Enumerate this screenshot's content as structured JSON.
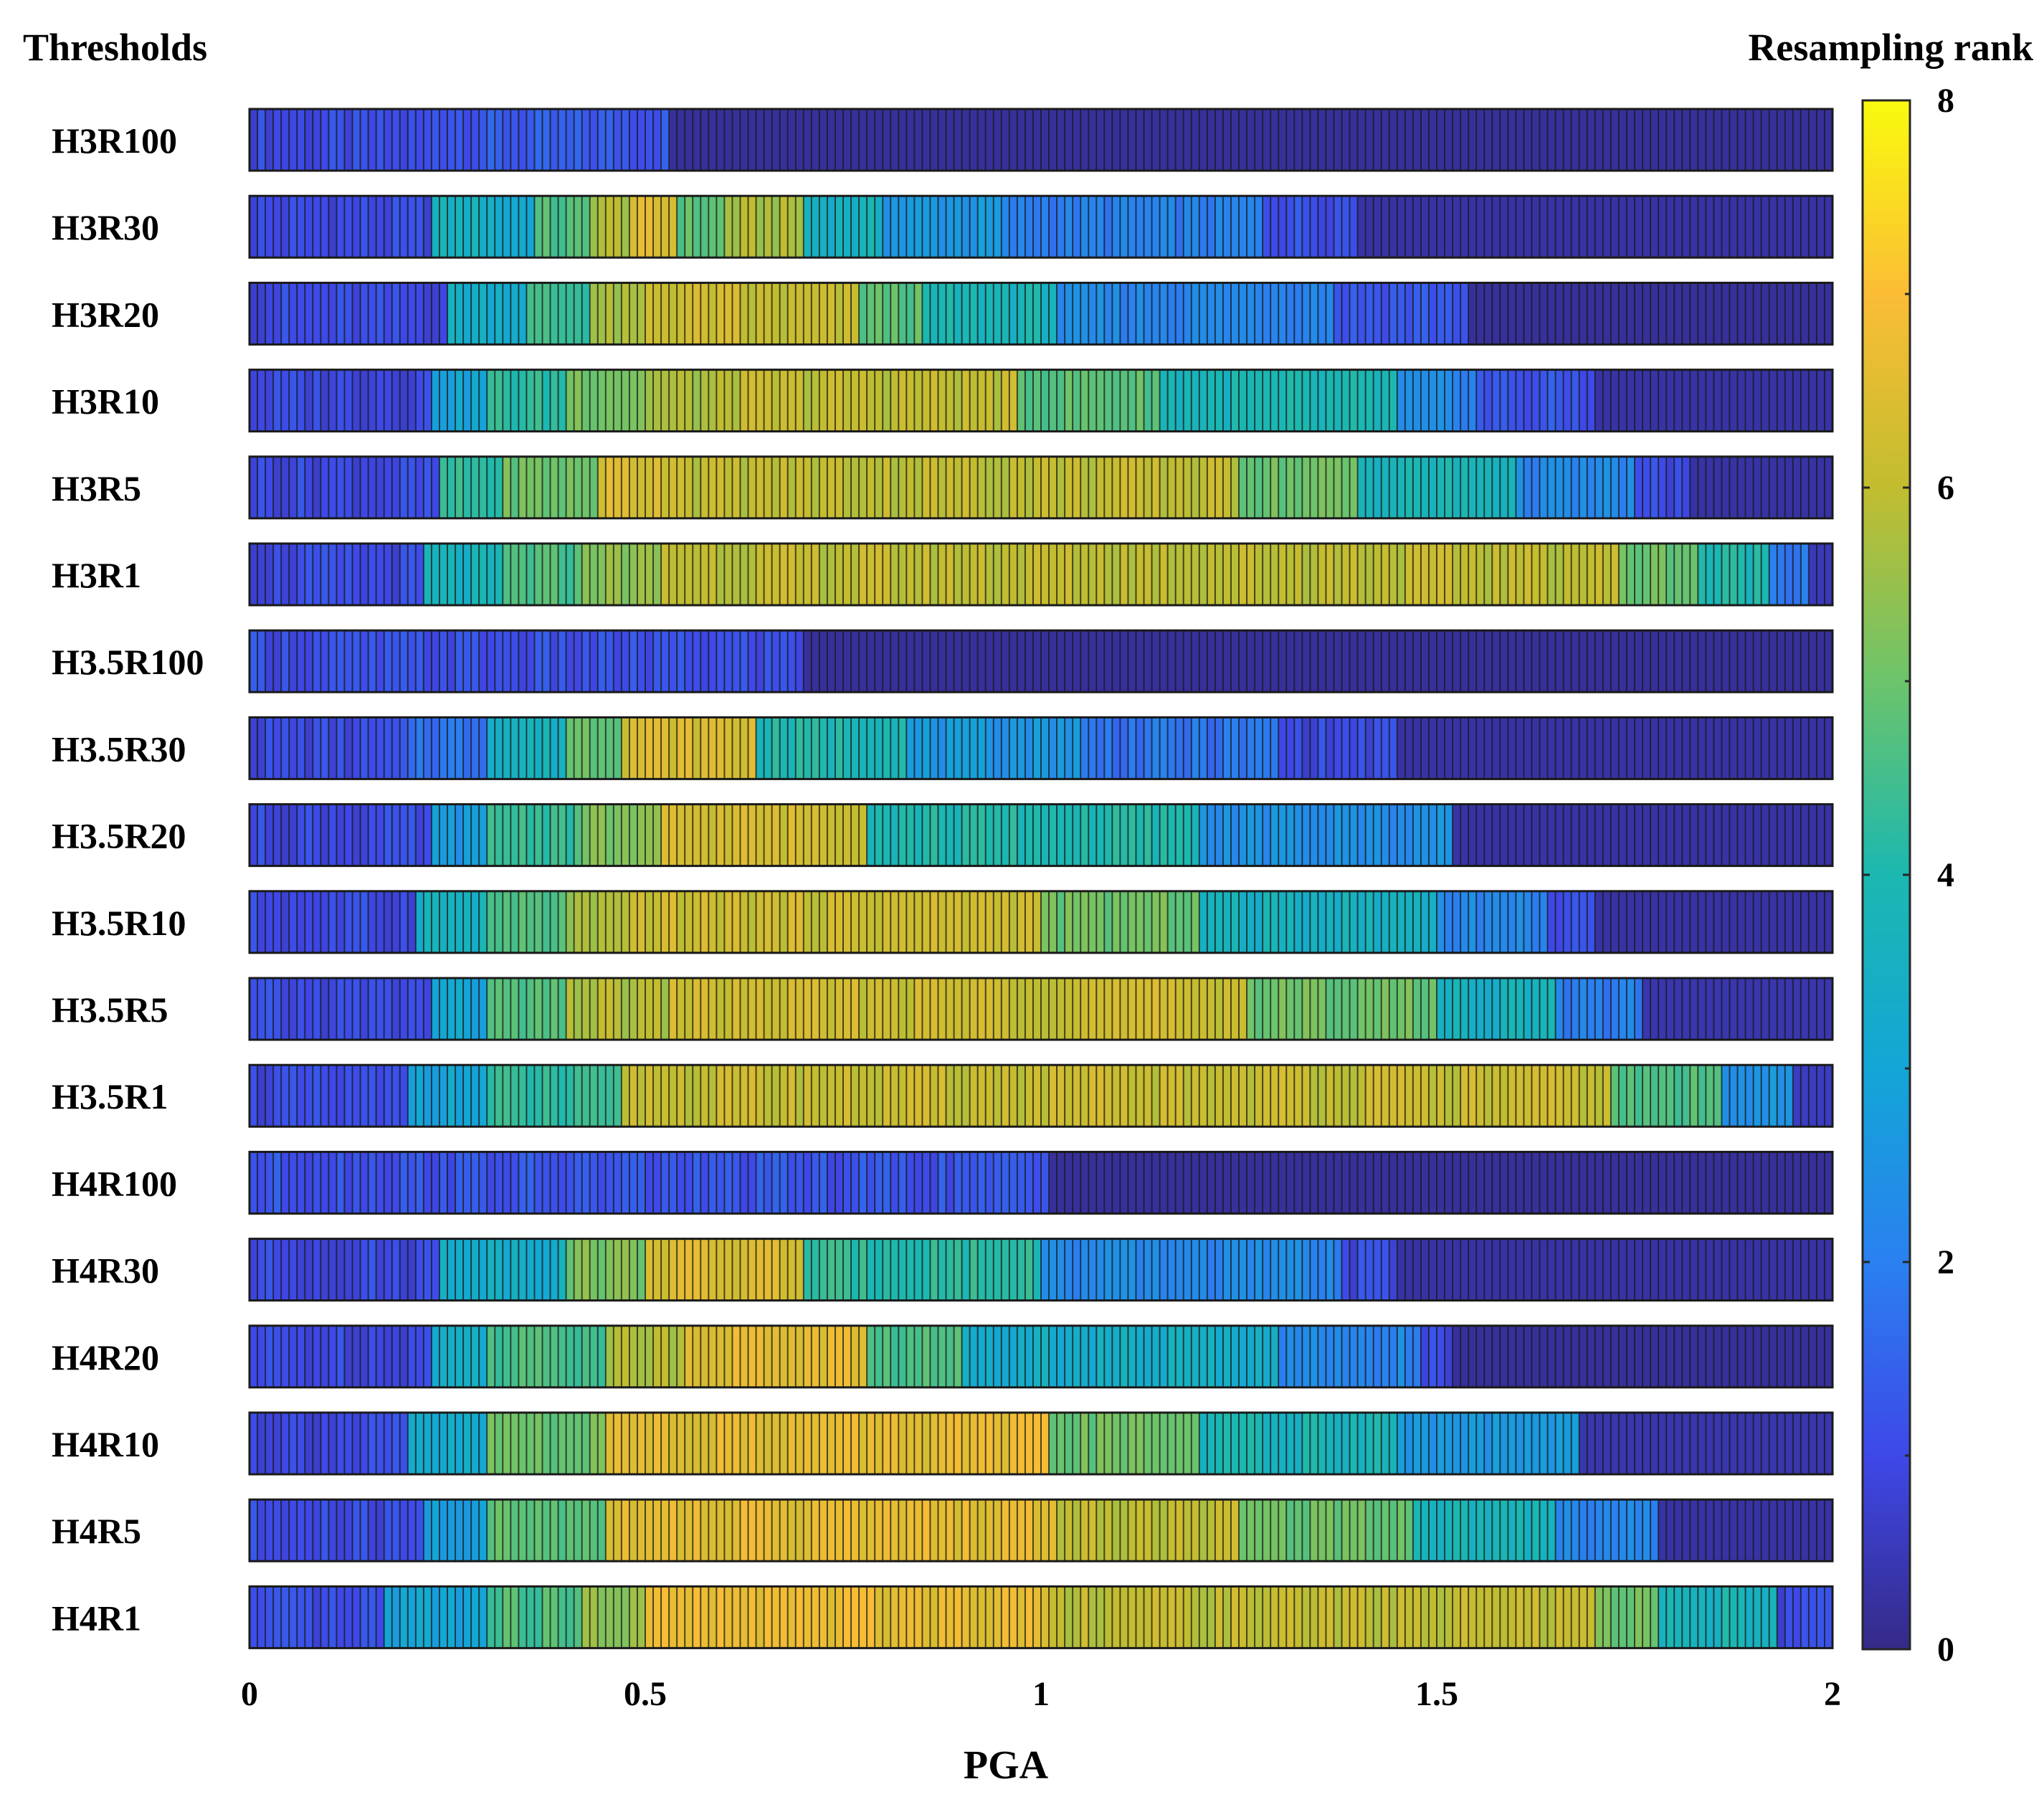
{
  "chart_data": {
    "type": "heatmap",
    "title": "",
    "xlabel": "PGA",
    "ylabel": "Thresholds",
    "colorbar_label": "Resampling rank",
    "colormap": "parula",
    "xlim": [
      0,
      2
    ],
    "x_ticks": [
      0,
      0.5,
      1,
      1.5,
      2
    ],
    "x_tick_labels": [
      "0",
      "0.5",
      "1",
      "1.5",
      "2"
    ],
    "clim": [
      0,
      8
    ],
    "colorbar_ticks": [
      0,
      2,
      4,
      6,
      8
    ],
    "colorbar_tick_labels": [
      "0",
      "2",
      "4",
      "6",
      "8"
    ],
    "colorbar_minor_ticks": [
      1,
      3,
      5,
      7
    ],
    "cells_per_row": 200,
    "rows": [
      {
        "label": "H3R100",
        "segments": [
          [
            0,
            0.23,
            1
          ],
          [
            0.23,
            0.535,
            1.3
          ],
          [
            0.535,
            2.0,
            0.2
          ]
        ]
      },
      {
        "label": "H3R30",
        "segments": [
          [
            0,
            0.235,
            1
          ],
          [
            0.235,
            0.31,
            3.6
          ],
          [
            0.31,
            0.36,
            3.2
          ],
          [
            0.36,
            0.43,
            4.6
          ],
          [
            0.43,
            0.48,
            5.8
          ],
          [
            0.48,
            0.54,
            6.4
          ],
          [
            0.54,
            0.6,
            4.8
          ],
          [
            0.6,
            0.7,
            5.7
          ],
          [
            0.7,
            0.8,
            3.6
          ],
          [
            0.8,
            0.95,
            2.6
          ],
          [
            0.95,
            1.28,
            2.0
          ],
          [
            1.28,
            1.4,
            1.2
          ],
          [
            1.4,
            2.0,
            0.3
          ]
        ]
      },
      {
        "label": "H3R20",
        "segments": [
          [
            0,
            0.25,
            1
          ],
          [
            0.25,
            0.35,
            3.4
          ],
          [
            0.35,
            0.43,
            4.4
          ],
          [
            0.43,
            0.5,
            5.6
          ],
          [
            0.5,
            0.62,
            6.2
          ],
          [
            0.62,
            0.77,
            6.0
          ],
          [
            0.77,
            0.85,
            4.8
          ],
          [
            0.85,
            1.02,
            3.8
          ],
          [
            1.02,
            1.37,
            2.2
          ],
          [
            1.37,
            1.54,
            1.3
          ],
          [
            1.54,
            2.0,
            0.2
          ]
        ]
      },
      {
        "label": "H3R10",
        "segments": [
          [
            0,
            0.235,
            1
          ],
          [
            0.235,
            0.3,
            3.0
          ],
          [
            0.3,
            0.4,
            4.2
          ],
          [
            0.4,
            0.5,
            5.2
          ],
          [
            0.5,
            0.6,
            5.7
          ],
          [
            0.6,
            0.97,
            6.0
          ],
          [
            0.97,
            1.15,
            4.8
          ],
          [
            1.15,
            1.45,
            3.8
          ],
          [
            1.45,
            1.55,
            2.2
          ],
          [
            1.55,
            1.7,
            1.2
          ],
          [
            1.7,
            2.0,
            0.3
          ]
        ]
      },
      {
        "label": "H3R5",
        "segments": [
          [
            0,
            0.245,
            1
          ],
          [
            0.245,
            0.32,
            4.2
          ],
          [
            0.32,
            0.44,
            5.0
          ],
          [
            0.44,
            0.55,
            6.4
          ],
          [
            0.55,
            1.25,
            6.0
          ],
          [
            1.25,
            1.4,
            5.0
          ],
          [
            1.4,
            1.6,
            3.8
          ],
          [
            1.6,
            1.75,
            2.2
          ],
          [
            1.75,
            1.82,
            1.0
          ],
          [
            1.82,
            2.0,
            0.3
          ]
        ]
      },
      {
        "label": "H3R1",
        "segments": [
          [
            0,
            0.225,
            1
          ],
          [
            0.225,
            0.32,
            3.6
          ],
          [
            0.32,
            0.42,
            4.6
          ],
          [
            0.42,
            0.52,
            5.4
          ],
          [
            0.52,
            1.73,
            6.0
          ],
          [
            1.73,
            1.83,
            5.0
          ],
          [
            1.83,
            1.92,
            4.0
          ],
          [
            1.92,
            1.97,
            2.0
          ],
          [
            1.97,
            2.0,
            0.5
          ]
        ]
      },
      {
        "label": "H3.5R100",
        "segments": [
          [
            0,
            0.7,
            1.1
          ],
          [
            0.7,
            2.0,
            0.2
          ]
        ]
      },
      {
        "label": "H3.5R30",
        "segments": [
          [
            0,
            0.2,
            1
          ],
          [
            0.2,
            0.3,
            1.8
          ],
          [
            0.3,
            0.4,
            3.6
          ],
          [
            0.4,
            0.47,
            5.0
          ],
          [
            0.47,
            0.64,
            6.4
          ],
          [
            0.64,
            0.83,
            4.0
          ],
          [
            0.83,
            1.05,
            2.6
          ],
          [
            1.05,
            1.3,
            1.8
          ],
          [
            1.3,
            1.45,
            1.0
          ],
          [
            1.45,
            2.0,
            0.3
          ]
        ]
      },
      {
        "label": "H3.5R20",
        "segments": [
          [
            0,
            0.23,
            1
          ],
          [
            0.23,
            0.3,
            2.6
          ],
          [
            0.3,
            0.42,
            4.4
          ],
          [
            0.42,
            0.52,
            5.2
          ],
          [
            0.52,
            0.78,
            6.3
          ],
          [
            0.78,
            1.2,
            4.0
          ],
          [
            1.2,
            1.52,
            2.4
          ],
          [
            1.52,
            2.0,
            0.3
          ]
        ]
      },
      {
        "label": "H3.5R10",
        "segments": [
          [
            0,
            0.21,
            1
          ],
          [
            0.21,
            0.3,
            3.6
          ],
          [
            0.3,
            0.4,
            4.6
          ],
          [
            0.4,
            0.48,
            5.6
          ],
          [
            0.48,
            1.0,
            6.2
          ],
          [
            1.0,
            1.2,
            5.0
          ],
          [
            1.2,
            1.5,
            3.6
          ],
          [
            1.5,
            1.64,
            2.2
          ],
          [
            1.64,
            1.7,
            1.0
          ],
          [
            1.7,
            2.0,
            0.3
          ]
        ]
      },
      {
        "label": "H3.5R5",
        "segments": [
          [
            0,
            0.23,
            1
          ],
          [
            0.23,
            0.3,
            3.0
          ],
          [
            0.3,
            0.4,
            4.6
          ],
          [
            0.4,
            0.53,
            5.8
          ],
          [
            0.53,
            1.26,
            6.2
          ],
          [
            1.26,
            1.5,
            5.0
          ],
          [
            1.5,
            1.65,
            3.6
          ],
          [
            1.65,
            1.76,
            2.0
          ],
          [
            1.76,
            2.0,
            0.4
          ]
        ]
      },
      {
        "label": "H3.5R1",
        "segments": [
          [
            0,
            0.2,
            1
          ],
          [
            0.2,
            0.3,
            3.0
          ],
          [
            0.3,
            0.47,
            4.2
          ],
          [
            0.47,
            1.72,
            6.1
          ],
          [
            1.72,
            1.86,
            4.6
          ],
          [
            1.86,
            1.95,
            2.6
          ],
          [
            1.95,
            2.0,
            0.6
          ]
        ]
      },
      {
        "label": "H4R100",
        "segments": [
          [
            0,
            1.01,
            1.2
          ],
          [
            1.01,
            2.0,
            0.2
          ]
        ]
      },
      {
        "label": "H4R30",
        "segments": [
          [
            0,
            0.24,
            1
          ],
          [
            0.24,
            0.4,
            3.4
          ],
          [
            0.4,
            0.5,
            5.2
          ],
          [
            0.5,
            0.7,
            6.4
          ],
          [
            0.7,
            1.0,
            4.2
          ],
          [
            1.0,
            1.38,
            2.2
          ],
          [
            1.38,
            1.45,
            1.0
          ],
          [
            1.45,
            2.0,
            0.3
          ]
        ]
      },
      {
        "label": "H4R20",
        "segments": [
          [
            0,
            0.235,
            1
          ],
          [
            0.235,
            0.3,
            3.4
          ],
          [
            0.3,
            0.45,
            4.6
          ],
          [
            0.45,
            0.55,
            5.8
          ],
          [
            0.55,
            0.78,
            6.6
          ],
          [
            0.78,
            0.9,
            4.6
          ],
          [
            0.9,
            1.3,
            3.4
          ],
          [
            1.3,
            1.48,
            2.2
          ],
          [
            1.48,
            1.52,
            1.0
          ],
          [
            1.52,
            2.0,
            0.2
          ]
        ]
      },
      {
        "label": "H4R10",
        "segments": [
          [
            0,
            0.2,
            1
          ],
          [
            0.2,
            0.3,
            3.2
          ],
          [
            0.3,
            0.45,
            5.0
          ],
          [
            0.45,
            1.01,
            6.6
          ],
          [
            1.01,
            1.2,
            5.0
          ],
          [
            1.2,
            1.45,
            3.8
          ],
          [
            1.45,
            1.68,
            2.6
          ],
          [
            1.68,
            2.0,
            0.4
          ]
        ]
      },
      {
        "label": "H4R5",
        "segments": [
          [
            0,
            0.22,
            1
          ],
          [
            0.22,
            0.3,
            2.8
          ],
          [
            0.3,
            0.45,
            4.8
          ],
          [
            0.45,
            1.02,
            6.6
          ],
          [
            1.02,
            1.25,
            6.0
          ],
          [
            1.25,
            1.47,
            5.0
          ],
          [
            1.47,
            1.65,
            3.8
          ],
          [
            1.65,
            1.78,
            2.2
          ],
          [
            1.78,
            2.0,
            0.3
          ]
        ]
      },
      {
        "label": "H4R1",
        "segments": [
          [
            0,
            0.17,
            1
          ],
          [
            0.17,
            0.3,
            3.0
          ],
          [
            0.3,
            0.42,
            4.6
          ],
          [
            0.42,
            0.5,
            5.4
          ],
          [
            0.5,
            1.01,
            6.7
          ],
          [
            1.01,
            1.7,
            6.0
          ],
          [
            1.7,
            1.78,
            5.0
          ],
          [
            1.78,
            1.93,
            3.8
          ],
          [
            1.93,
            2.0,
            1.0
          ]
        ]
      }
    ]
  }
}
